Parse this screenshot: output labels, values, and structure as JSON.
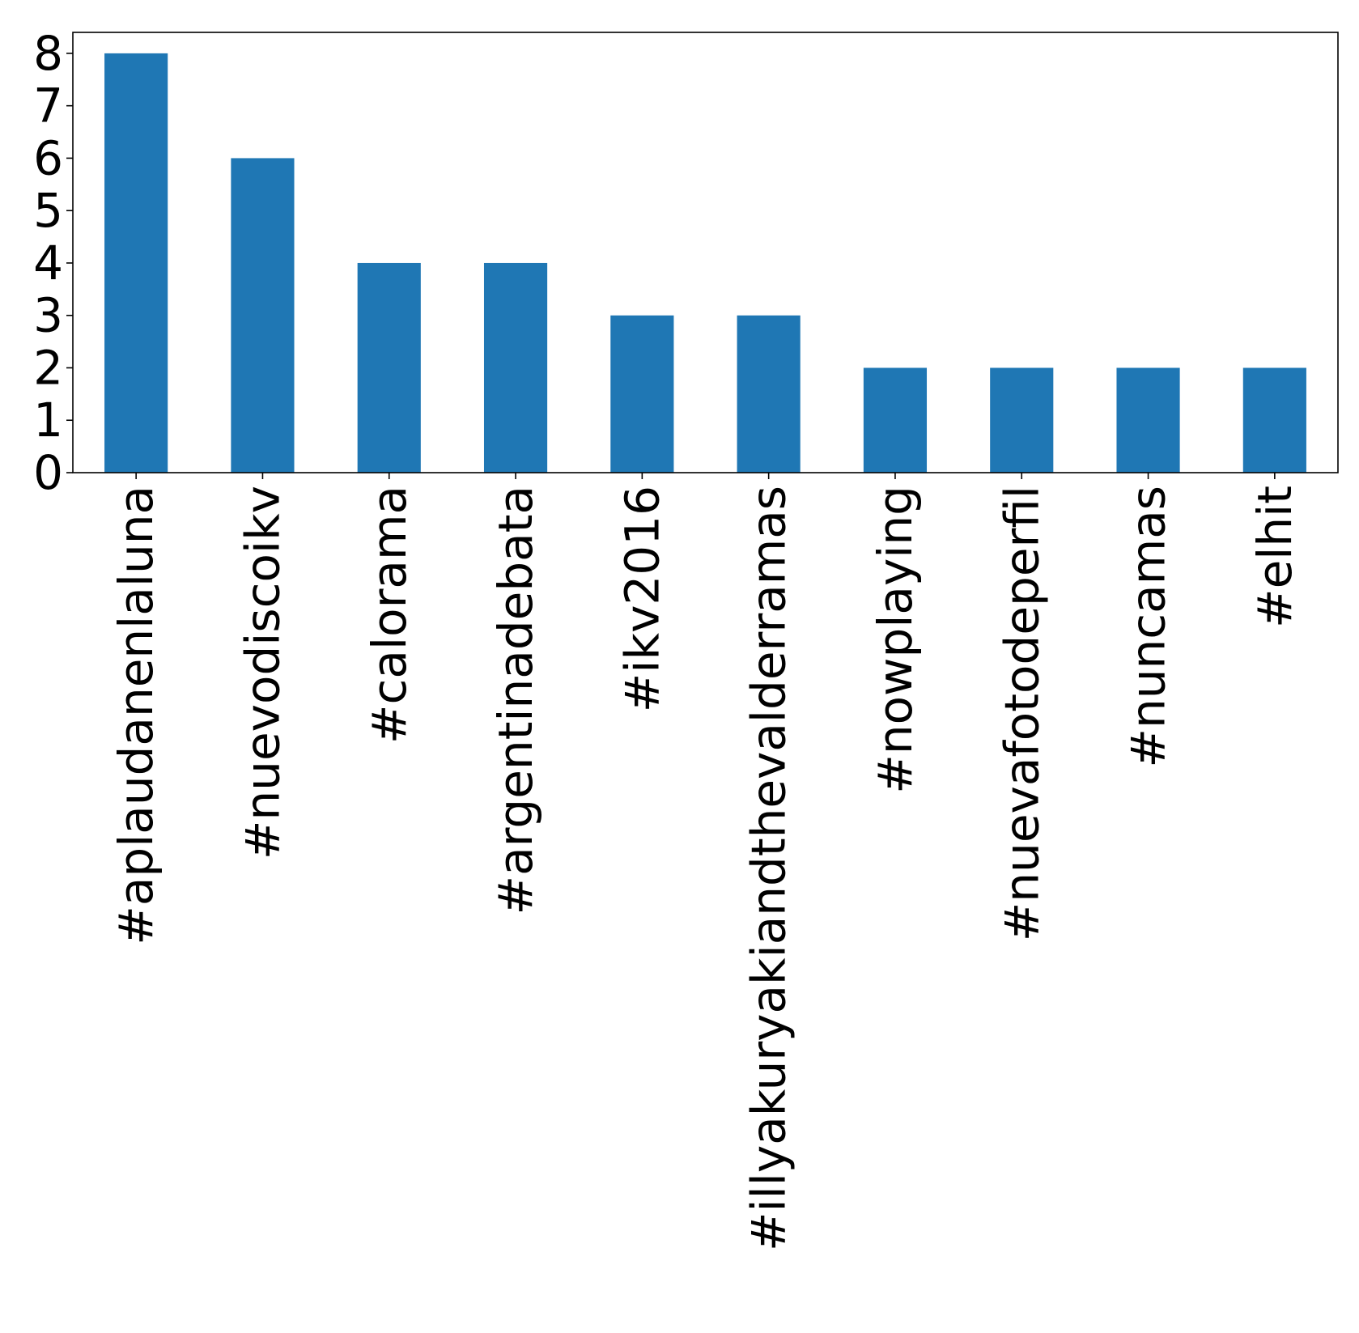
{
  "chart_data": {
    "type": "bar",
    "categories": [
      "#aplaudanenlaluna",
      "#nuevodiscoikv",
      "#calorama",
      "#argentinadebata",
      "#ikv2016",
      "#illyakuryakiandthevalderramas",
      "#nowplaying",
      "#nuevafotodeperfil",
      "#nuncamas",
      "#elhit"
    ],
    "values": [
      8,
      6,
      4,
      4,
      3,
      3,
      2,
      2,
      2,
      2
    ],
    "title": "",
    "xlabel": "",
    "ylabel": "",
    "ylim": [
      0,
      8.4
    ],
    "yticks": [
      0,
      1,
      2,
      3,
      4,
      5,
      6,
      7,
      8
    ],
    "grid": false,
    "legend": "none",
    "bar_color": "#1f77b4"
  }
}
